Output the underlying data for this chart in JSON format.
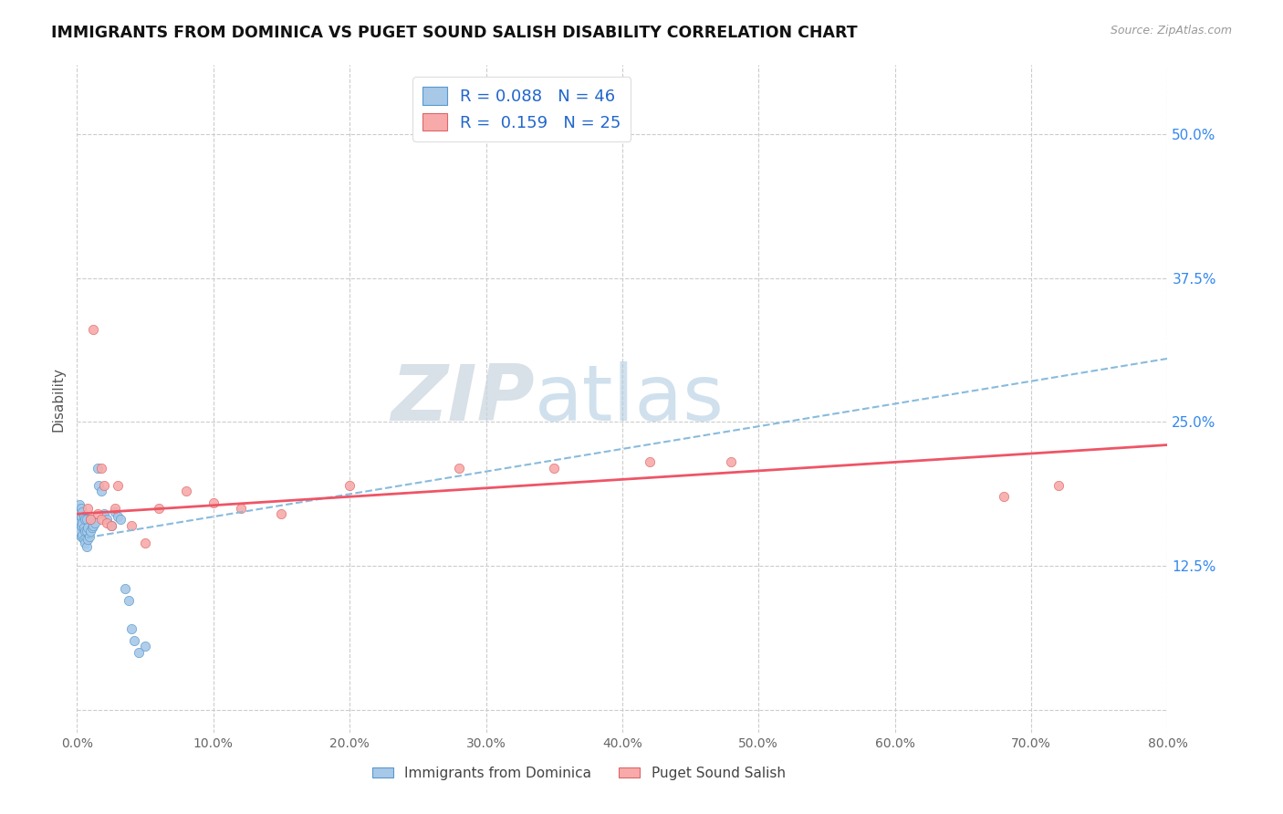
{
  "title": "IMMIGRANTS FROM DOMINICA VS PUGET SOUND SALISH DISABILITY CORRELATION CHART",
  "source_text": "Source: ZipAtlas.com",
  "ylabel": "Disability",
  "watermark_left": "ZIP",
  "watermark_right": "atlas",
  "xlim": [
    0.0,
    0.8
  ],
  "ylim": [
    -0.02,
    0.56
  ],
  "xticks": [
    0.0,
    0.1,
    0.2,
    0.3,
    0.4,
    0.5,
    0.6,
    0.7,
    0.8
  ],
  "yticks": [
    0.0,
    0.125,
    0.25,
    0.375,
    0.5
  ],
  "ytick_labels": [
    "",
    "12.5%",
    "25.0%",
    "37.5%",
    "50.0%"
  ],
  "xtick_labels": [
    "0.0%",
    "10.0%",
    "20.0%",
    "30.0%",
    "40.0%",
    "50.0%",
    "60.0%",
    "70.0%",
    "80.0%"
  ],
  "blue_color": "#a8c8e8",
  "blue_edge": "#5599cc",
  "pink_color": "#f8aaaa",
  "pink_edge": "#dd6666",
  "trend_blue_color": "#88bbdd",
  "trend_pink_color": "#ee5566",
  "legend_R1": "R = 0.088",
  "legend_N1": "N = 46",
  "legend_R2": "R =  0.159",
  "legend_N2": "N = 25",
  "label1": "Immigrants from Dominica",
  "label2": "Puget Sound Salish",
  "blue_x": [
    0.001,
    0.001,
    0.001,
    0.002,
    0.002,
    0.002,
    0.002,
    0.003,
    0.003,
    0.003,
    0.003,
    0.004,
    0.004,
    0.004,
    0.005,
    0.005,
    0.005,
    0.006,
    0.006,
    0.006,
    0.007,
    0.007,
    0.007,
    0.008,
    0.008,
    0.009,
    0.01,
    0.01,
    0.011,
    0.012,
    0.013,
    0.015,
    0.016,
    0.018,
    0.02,
    0.022,
    0.025,
    0.028,
    0.03,
    0.032,
    0.035,
    0.038,
    0.04,
    0.042,
    0.045,
    0.05
  ],
  "blue_y": [
    0.16,
    0.17,
    0.175,
    0.155,
    0.162,
    0.17,
    0.178,
    0.15,
    0.16,
    0.168,
    0.175,
    0.152,
    0.162,
    0.172,
    0.148,
    0.158,
    0.168,
    0.145,
    0.155,
    0.165,
    0.142,
    0.155,
    0.165,
    0.148,
    0.158,
    0.15,
    0.155,
    0.165,
    0.158,
    0.16,
    0.162,
    0.21,
    0.195,
    0.19,
    0.17,
    0.165,
    0.16,
    0.172,
    0.168,
    0.165,
    0.105,
    0.095,
    0.07,
    0.06,
    0.05,
    0.055
  ],
  "pink_x": [
    0.008,
    0.012,
    0.015,
    0.018,
    0.02,
    0.022,
    0.025,
    0.028,
    0.03,
    0.04,
    0.05,
    0.06,
    0.08,
    0.1,
    0.12,
    0.15,
    0.2,
    0.28,
    0.35,
    0.42,
    0.48,
    0.68,
    0.72,
    0.01,
    0.018
  ],
  "pink_y": [
    0.175,
    0.33,
    0.17,
    0.165,
    0.195,
    0.162,
    0.16,
    0.175,
    0.195,
    0.16,
    0.145,
    0.175,
    0.19,
    0.18,
    0.175,
    0.17,
    0.195,
    0.21,
    0.21,
    0.215,
    0.215,
    0.185,
    0.195,
    0.165,
    0.21
  ],
  "background_color": "#ffffff",
  "grid_color": "#cccccc"
}
